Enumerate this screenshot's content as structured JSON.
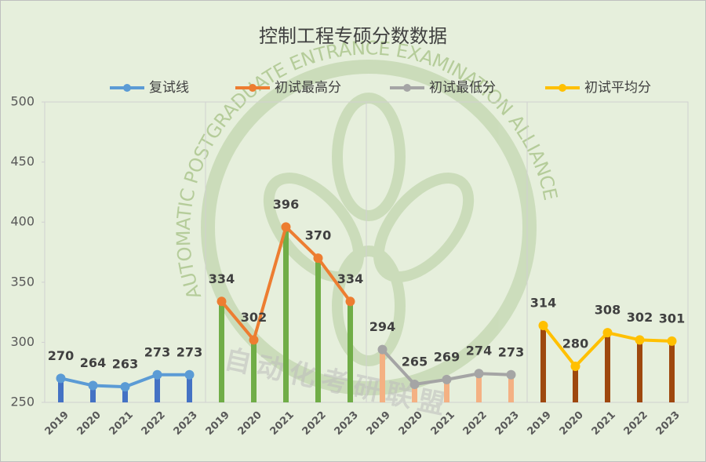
{
  "chart_data": {
    "type": "line",
    "title": "控制工程专硕分数数据",
    "categories": [
      "2019",
      "2020",
      "2021",
      "2022",
      "2023",
      "2019",
      "2020",
      "2021",
      "2022",
      "2023",
      "2019",
      "2020",
      "2021",
      "2022",
      "2023",
      "2019",
      "2020",
      "2021",
      "2022",
      "2023"
    ],
    "series": [
      {
        "name": "复试线",
        "color": "#5b9bd5",
        "bar_color": "#4472c4",
        "values": [
          270,
          264,
          263,
          273,
          273,
          null,
          null,
          null,
          null,
          null,
          null,
          null,
          null,
          null,
          null,
          null,
          null,
          null,
          null,
          null
        ]
      },
      {
        "name": "初试最高分",
        "color": "#ed7d31",
        "bar_color": "#70ad47",
        "values": [
          null,
          null,
          null,
          null,
          null,
          334,
          302,
          396,
          370,
          334,
          null,
          null,
          null,
          null,
          null,
          null,
          null,
          null,
          null,
          null
        ]
      },
      {
        "name": "初试最低分",
        "color": "#a5a5a5",
        "bar_color": "#f4b183",
        "values": [
          null,
          null,
          null,
          null,
          null,
          null,
          null,
          null,
          null,
          null,
          294,
          265,
          269,
          274,
          273,
          null,
          null,
          null,
          null,
          null
        ]
      },
      {
        "name": "初试平均分",
        "color": "#ffc000",
        "bar_color": "#9e480e",
        "values": [
          null,
          null,
          null,
          null,
          null,
          null,
          null,
          null,
          null,
          null,
          null,
          null,
          null,
          null,
          null,
          314,
          280,
          308,
          302,
          301
        ]
      }
    ],
    "ylim": [
      250,
      500
    ],
    "yticks": [
      250,
      300,
      350,
      400,
      450,
      500
    ],
    "grid": false,
    "legend": "top",
    "watermark": {
      "english": "AUTOMATIC POSTGRADUATE ENTRANCE EXAMINATION ALLIANCE",
      "chinese": "自动化考研联盟"
    }
  }
}
